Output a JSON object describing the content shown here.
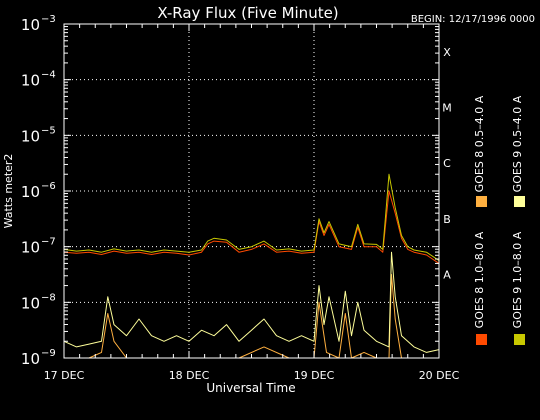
{
  "chart_data": {
    "type": "line",
    "title": "X-Ray Flux (Five Minute)",
    "begin_label": "BEGIN: 12/17/1996 0000",
    "xlabel": "Universal Time",
    "ylabel": "Watts meter2",
    "y_scale": "log",
    "ylim_exp": [
      -9,
      -3
    ],
    "xlim_days": [
      17,
      20
    ],
    "grid": true,
    "x_ticks": [
      {
        "label": "17 DEC",
        "day": 17
      },
      {
        "label": "18 DEC",
        "day": 18
      },
      {
        "label": "19 DEC",
        "day": 19
      },
      {
        "label": "20 DEC",
        "day": 20
      }
    ],
    "y_ticks": [
      {
        "base": "10",
        "exp": "-9",
        "value": -9
      },
      {
        "base": "10",
        "exp": "-8",
        "value": -8
      },
      {
        "base": "10",
        "exp": "-7",
        "value": -7
      },
      {
        "base": "10",
        "exp": "-6",
        "value": -6
      },
      {
        "base": "10",
        "exp": "-5",
        "value": -5
      },
      {
        "base": "10",
        "exp": "-4",
        "value": -4
      },
      {
        "base": "10",
        "exp": "-3",
        "value": -3
      }
    ],
    "flare_classes": [
      {
        "label": "A",
        "value": -8
      },
      {
        "label": "B",
        "value": -7
      },
      {
        "label": "C",
        "value": -6
      },
      {
        "label": "M",
        "value": -5
      },
      {
        "label": "X",
        "value": -4
      }
    ],
    "legend_position": "right-vertical",
    "series": [
      {
        "name": "GOES 8 1.0–8.0 A",
        "color": "#ff4a00",
        "x": [
          17.0,
          17.1,
          17.2,
          17.3,
          17.4,
          17.5,
          17.6,
          17.7,
          17.8,
          17.9,
          18.0,
          18.1,
          18.15,
          18.2,
          18.3,
          18.4,
          18.5,
          18.6,
          18.7,
          18.8,
          18.9,
          19.0,
          19.04,
          19.08,
          19.12,
          19.2,
          19.3,
          19.35,
          19.4,
          19.5,
          19.55,
          19.6,
          19.65,
          19.7,
          19.75,
          19.8,
          19.9,
          20.0
        ],
        "y": [
          -7.1,
          -7.12,
          -7.1,
          -7.14,
          -7.08,
          -7.12,
          -7.1,
          -7.14,
          -7.1,
          -7.12,
          -7.15,
          -7.1,
          -6.95,
          -6.9,
          -6.92,
          -7.1,
          -7.05,
          -6.95,
          -7.1,
          -7.08,
          -7.12,
          -7.1,
          -6.55,
          -6.8,
          -6.6,
          -7.0,
          -7.05,
          -6.65,
          -7.0,
          -7.0,
          -7.1,
          -6.0,
          -6.4,
          -6.85,
          -7.05,
          -7.1,
          -7.15,
          -7.3
        ]
      },
      {
        "name": "GOES 8 0.5–4.0 A",
        "color": "#ffb040",
        "x": [
          17.0,
          17.2,
          17.3,
          17.35,
          17.4,
          17.5,
          17.6,
          17.8,
          18.0,
          18.2,
          18.4,
          18.6,
          18.8,
          19.0,
          19.04,
          19.1,
          19.2,
          19.25,
          19.3,
          19.4,
          19.5,
          19.6,
          19.62,
          19.65,
          19.7,
          19.8,
          20.0
        ],
        "y": [
          -9.0,
          -9.0,
          -8.9,
          -8.2,
          -8.7,
          -9.0,
          -9.0,
          -9.0,
          -9.0,
          -9.0,
          -9.0,
          -8.8,
          -9.0,
          -9.0,
          -8.0,
          -8.9,
          -9.0,
          -8.2,
          -9.0,
          -8.9,
          -9.0,
          -9.0,
          -7.5,
          -8.3,
          -9.0,
          -9.0,
          -9.0
        ]
      },
      {
        "name": "GOES 9 1.0–8.0 A",
        "color": "#c8c800",
        "x": [
          17.0,
          17.1,
          17.2,
          17.3,
          17.4,
          17.5,
          17.6,
          17.7,
          17.8,
          17.9,
          18.0,
          18.1,
          18.15,
          18.2,
          18.3,
          18.4,
          18.5,
          18.6,
          18.7,
          18.8,
          18.9,
          19.0,
          19.04,
          19.08,
          19.12,
          19.2,
          19.3,
          19.35,
          19.4,
          19.5,
          19.55,
          19.6,
          19.65,
          19.7,
          19.75,
          19.8,
          19.9,
          20.0
        ],
        "y": [
          -7.05,
          -7.08,
          -7.06,
          -7.1,
          -7.04,
          -7.08,
          -7.06,
          -7.1,
          -7.06,
          -7.08,
          -7.1,
          -7.06,
          -6.9,
          -6.85,
          -6.88,
          -7.05,
          -7.0,
          -6.9,
          -7.06,
          -7.04,
          -7.08,
          -7.06,
          -6.5,
          -6.75,
          -6.55,
          -6.95,
          -7.0,
          -6.6,
          -6.95,
          -6.96,
          -7.05,
          -5.7,
          -6.3,
          -6.8,
          -7.0,
          -7.06,
          -7.1,
          -7.25
        ]
      },
      {
        "name": "GOES 9 0.5–4.0 A",
        "color": "#ffff9a",
        "x": [
          17.0,
          17.1,
          17.2,
          17.3,
          17.35,
          17.4,
          17.5,
          17.6,
          17.7,
          17.8,
          17.9,
          18.0,
          18.1,
          18.2,
          18.3,
          18.4,
          18.5,
          18.6,
          18.7,
          18.8,
          18.9,
          19.0,
          19.04,
          19.08,
          19.12,
          19.2,
          19.25,
          19.3,
          19.35,
          19.4,
          19.5,
          19.6,
          19.62,
          19.65,
          19.7,
          19.8,
          19.9,
          20.0
        ],
        "y": [
          -8.7,
          -8.8,
          -8.75,
          -8.7,
          -7.9,
          -8.4,
          -8.6,
          -8.3,
          -8.6,
          -8.7,
          -8.6,
          -8.7,
          -8.5,
          -8.6,
          -8.4,
          -8.7,
          -8.5,
          -8.3,
          -8.6,
          -8.7,
          -8.6,
          -8.7,
          -7.7,
          -8.4,
          -7.9,
          -8.7,
          -7.8,
          -8.6,
          -8.0,
          -8.5,
          -8.7,
          -8.8,
          -7.1,
          -7.9,
          -8.6,
          -8.8,
          -8.9,
          -8.85
        ]
      }
    ]
  }
}
